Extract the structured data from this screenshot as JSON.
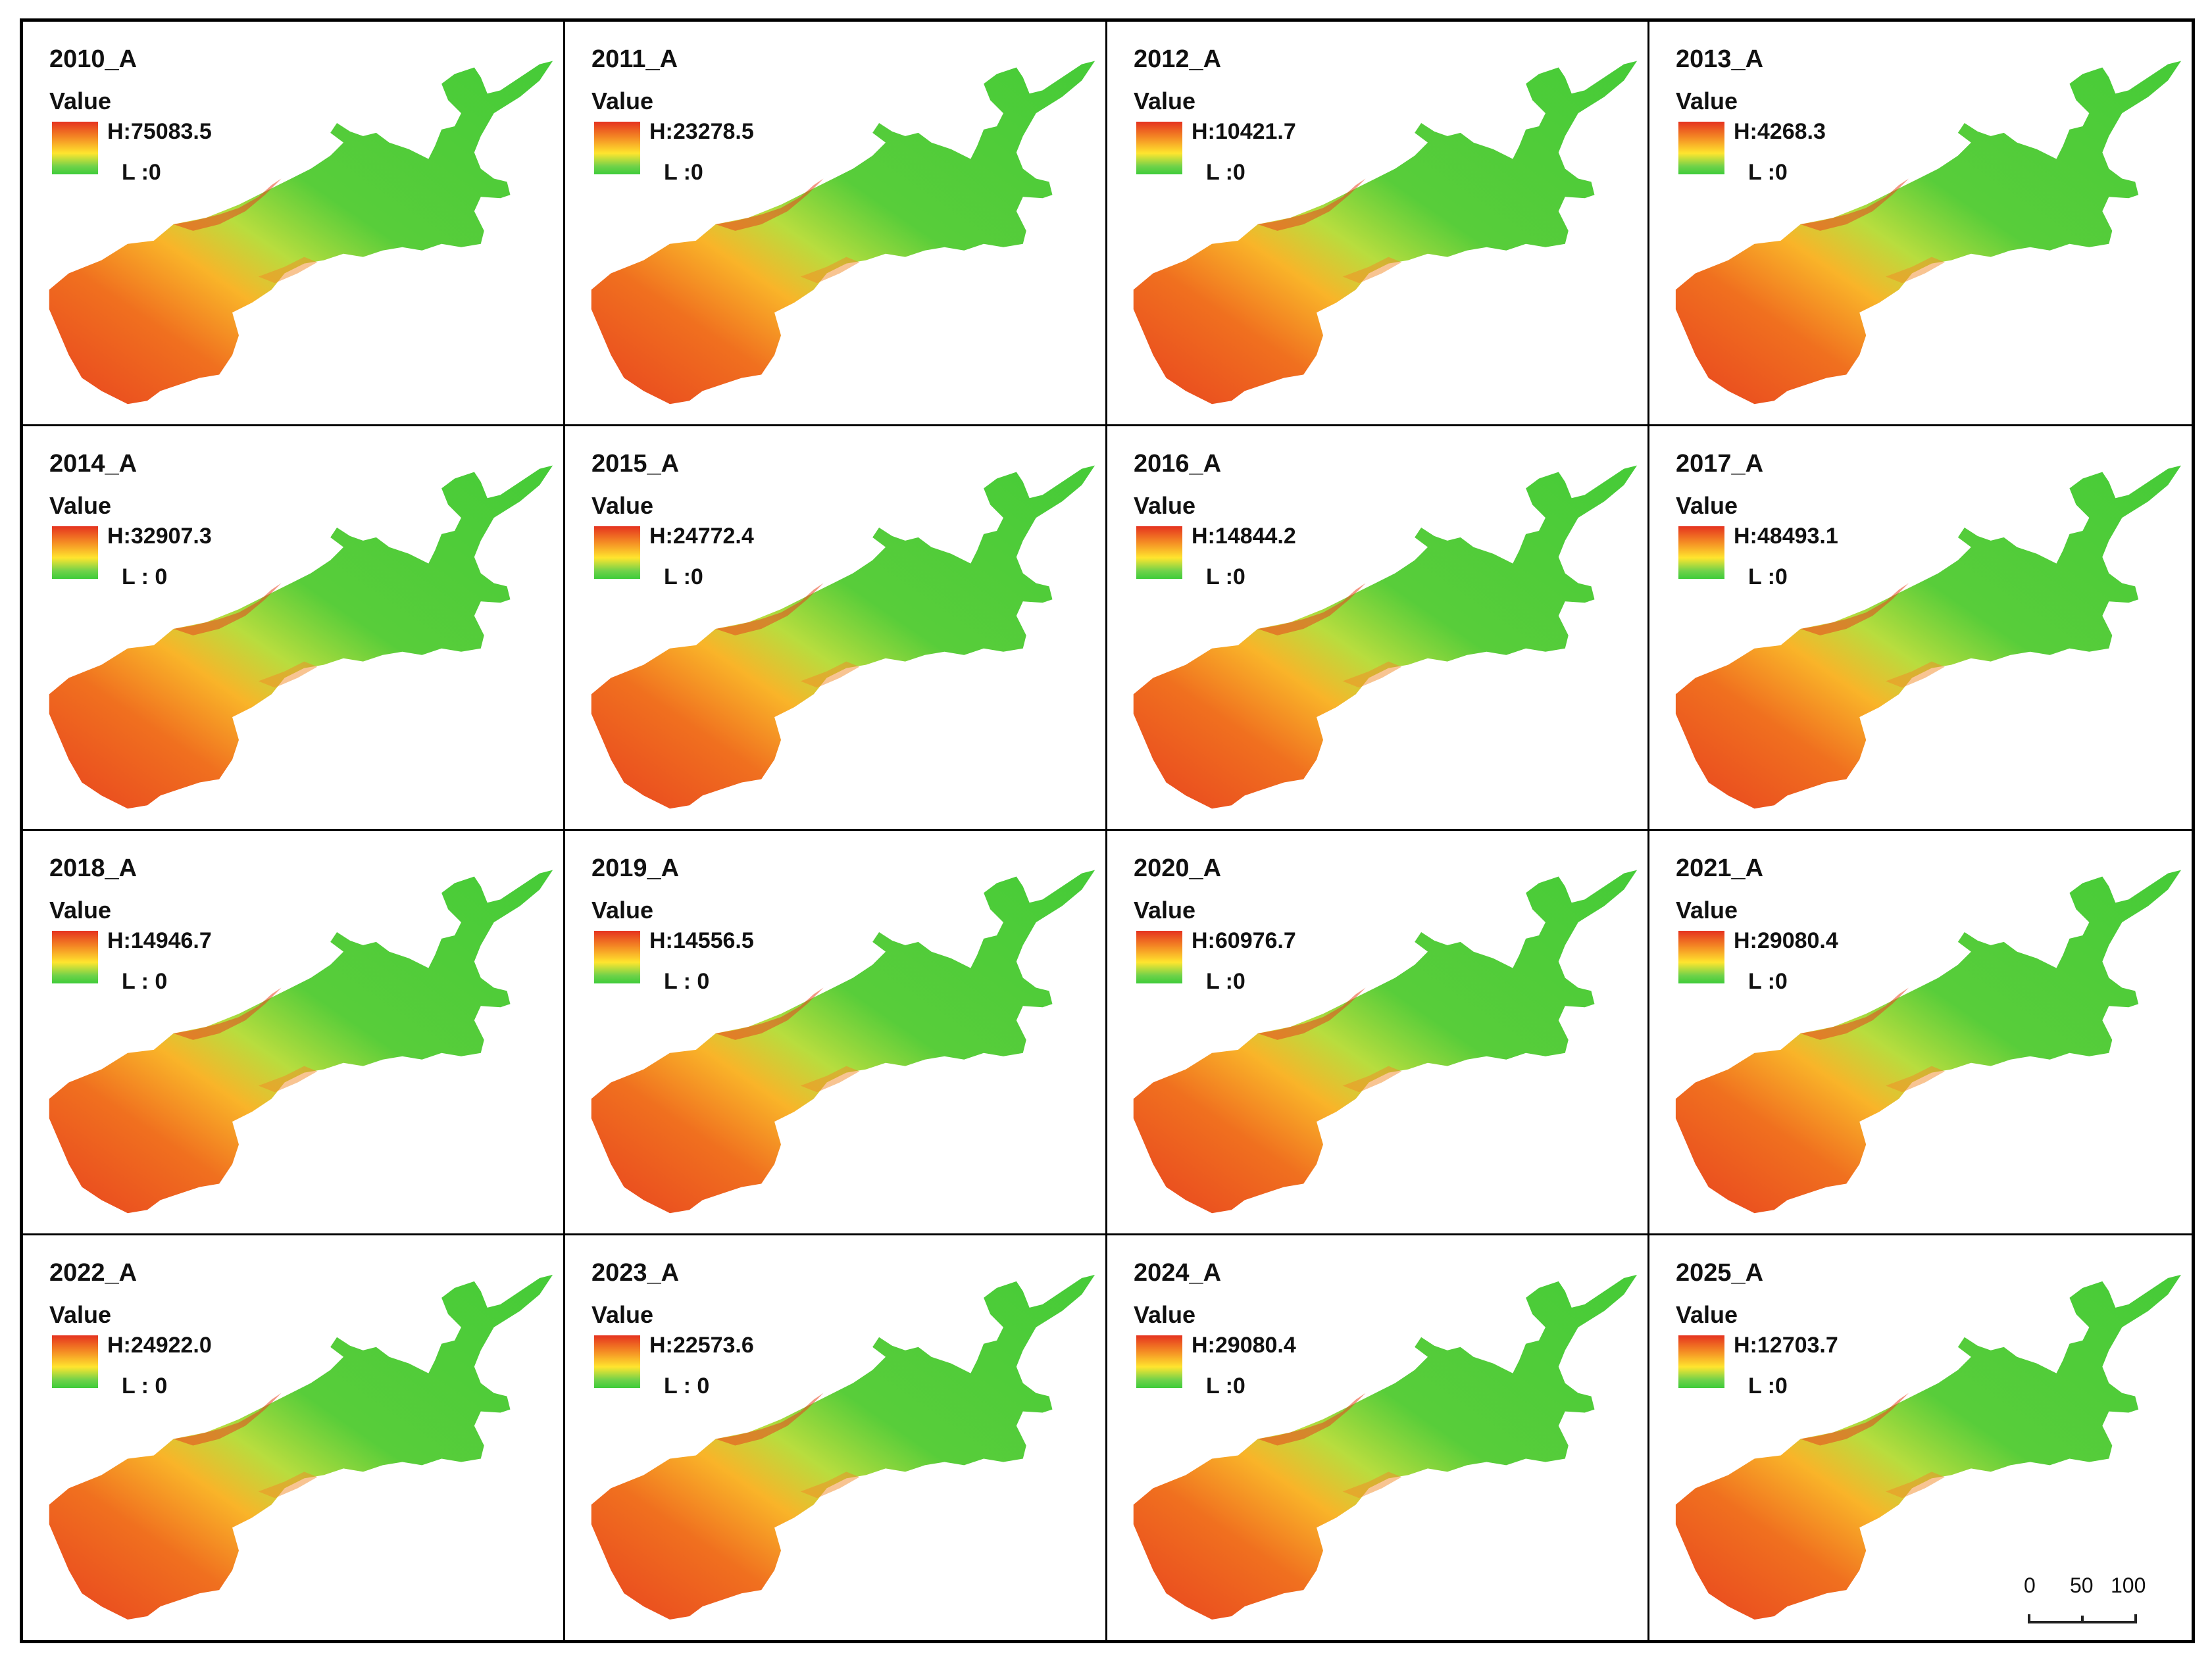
{
  "legend_title": "Value",
  "low_prefix": "L",
  "colors": {
    "high": "#e5321f",
    "mid_high": "#f48a24",
    "mid": "#ffe52e",
    "low": "#3ecc3a"
  },
  "panels": [
    {
      "title": "2010_A",
      "high_label": "H:75083.5",
      "low_label": "L :0"
    },
    {
      "title": "2011_A",
      "high_label": "H:23278.5",
      "low_label": "L :0"
    },
    {
      "title": "2012_A",
      "high_label": "H:10421.7",
      "low_label": "L :0"
    },
    {
      "title": "2013_A",
      "high_label": "H:4268.3",
      "low_label": "L :0"
    },
    {
      "title": "2014_A",
      "high_label": "H:32907.3",
      "low_label": "L : 0"
    },
    {
      "title": "2015_A",
      "high_label": "H:24772.4",
      "low_label": "L :0"
    },
    {
      "title": "2016_A",
      "high_label": "H:14844.2",
      "low_label": "L :0"
    },
    {
      "title": "2017_A",
      "high_label": "H:48493.1",
      "low_label": "L :0"
    },
    {
      "title": "2018_A",
      "high_label": "H:14946.7",
      "low_label": "L : 0"
    },
    {
      "title": "2019_A",
      "high_label": "H:14556.5",
      "low_label": "L : 0"
    },
    {
      "title": "2020_A",
      "high_label": "H:60976.7",
      "low_label": "L :0"
    },
    {
      "title": "2021_A",
      "high_label": "H:29080.4",
      "low_label": "L :0"
    },
    {
      "title": "2022_A",
      "high_label": "H:24922.0",
      "low_label": "L : 0"
    },
    {
      "title": "2023_A",
      "high_label": "H:22573.6",
      "low_label": "L : 0"
    },
    {
      "title": "2024_A",
      "high_label": "H:29080.4",
      "low_label": "L :0"
    },
    {
      "title": "2025_A",
      "high_label": "H:12703.7",
      "low_label": "L :0"
    }
  ],
  "scalebar": {
    "labels": [
      "0",
      "50",
      "100"
    ]
  }
}
